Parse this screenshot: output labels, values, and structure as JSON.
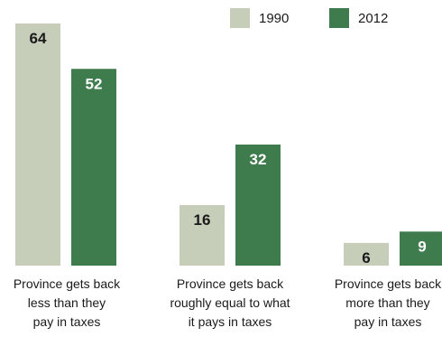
{
  "chart_data": {
    "type": "bar",
    "categories": [
      [
        "Province gets back",
        "less than they",
        "pay in taxes"
      ],
      [
        "Province gets back",
        "roughly equal to what",
        "it pays in taxes"
      ],
      [
        "Province gets back",
        "more than they",
        "pay in taxes"
      ]
    ],
    "series": [
      {
        "name": "1990",
        "values": [
          64,
          16,
          6
        ],
        "color": "#c6cdb9"
      },
      {
        "name": "2012",
        "values": [
          52,
          32,
          9
        ],
        "color": "#3e7c4d"
      }
    ],
    "ylim": [
      0,
      64
    ],
    "grid": false,
    "legend": "top-right"
  }
}
